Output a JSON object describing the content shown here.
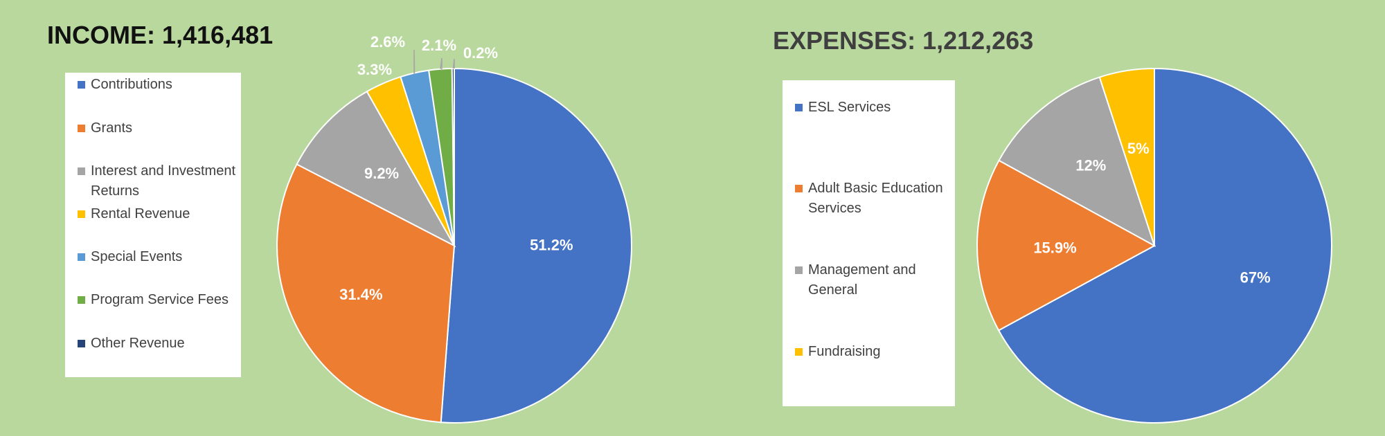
{
  "chart_data": [
    {
      "type": "pie",
      "title": "INCOME: 1,416,481",
      "categories": [
        "Contributions",
        "Grants",
        "Interest and Investment Returns",
        "Rental Revenue",
        "Special Events",
        "Program Service Fees",
        "Other Revenue"
      ],
      "values": [
        51.2,
        31.4,
        9.2,
        3.3,
        2.6,
        2.1,
        0.2
      ],
      "labels": [
        "51.2%",
        "31.4%",
        "9.2%",
        "3.3%",
        "2.6%",
        "2.1%",
        "0.2%"
      ],
      "colors": [
        "#4472c4",
        "#ed7d31",
        "#a5a5a5",
        "#ffc000",
        "#5b9bd5",
        "#70ad47",
        "#264478"
      ],
      "legend": "left"
    },
    {
      "type": "pie",
      "title": "EXPENSES: 1,212,263",
      "categories": [
        "ESL Services",
        "Adult Basic Education Services",
        "Management and General",
        "Fundraising"
      ],
      "values": [
        67,
        15.9,
        12,
        5
      ],
      "labels": [
        "67%",
        "15.9%",
        "12%",
        "5%"
      ],
      "colors": [
        "#4472c4",
        "#ed7d31",
        "#a5a5a5",
        "#ffc000"
      ],
      "legend": "left"
    }
  ]
}
